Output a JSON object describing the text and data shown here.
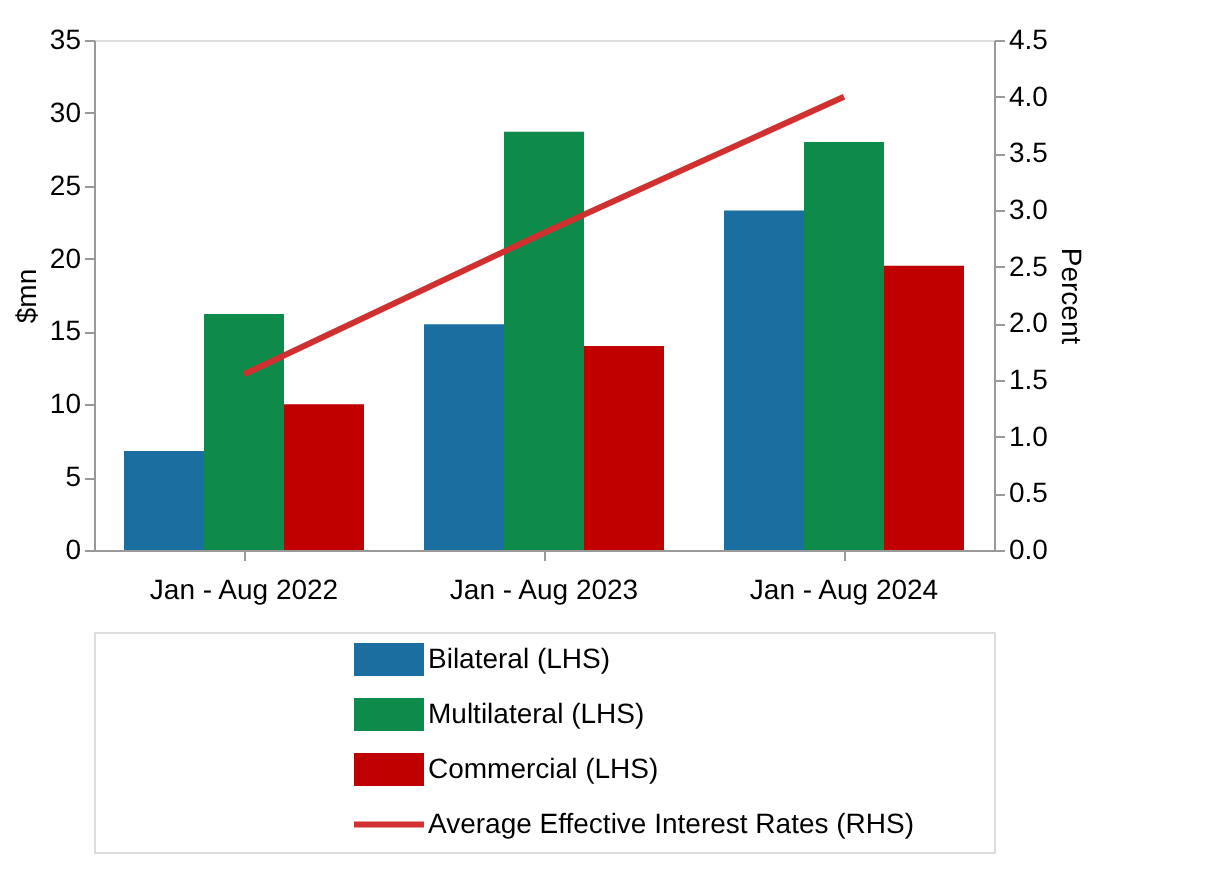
{
  "chart_data": {
    "type": "bar",
    "categories": [
      "Jan - Aug 2022",
      "Jan - Aug 2023",
      "Jan - Aug 2024"
    ],
    "ylabel": "$mn",
    "y2label": "Percent",
    "ylim": [
      0,
      35
    ],
    "yticks": [
      0,
      5,
      10,
      15,
      20,
      25,
      30,
      35
    ],
    "y2lim": [
      0,
      4.5
    ],
    "y2ticks": [
      {
        "value": 0,
        "label": "0.0"
      },
      {
        "value": 0.5,
        "label": "0.5"
      },
      {
        "value": 1,
        "label": "1.0"
      },
      {
        "value": 1.5,
        "label": "1.5"
      },
      {
        "value": 2,
        "label": "2.0"
      },
      {
        "value": 2.5,
        "label": "2.5"
      },
      {
        "value": 3,
        "label": "3.0"
      },
      {
        "value": 3.5,
        "label": "3.5"
      },
      {
        "value": 4,
        "label": "4.0"
      },
      {
        "value": 4.5,
        "label": "4.5"
      }
    ],
    "series": [
      {
        "name": "Bilateral (LHS)",
        "color": "#1a6fa0",
        "values": [
          6.8,
          15.5,
          23.3
        ]
      },
      {
        "name": "Multilateral (LHS)",
        "color": "#0e8a4a",
        "values": [
          16.2,
          28.7,
          28.0
        ]
      },
      {
        "name": "Commercial (LHS)",
        "color": "#c00000",
        "values": [
          10.0,
          14.0,
          19.5
        ]
      },
      {
        "name": "Average Effective Interest Rates (RHS)",
        "color": "#d03030",
        "type": "line",
        "axis": "y2",
        "values": [
          1.55,
          2.8,
          4.0
        ]
      }
    ],
    "legend": "bottom",
    "grid": false
  }
}
